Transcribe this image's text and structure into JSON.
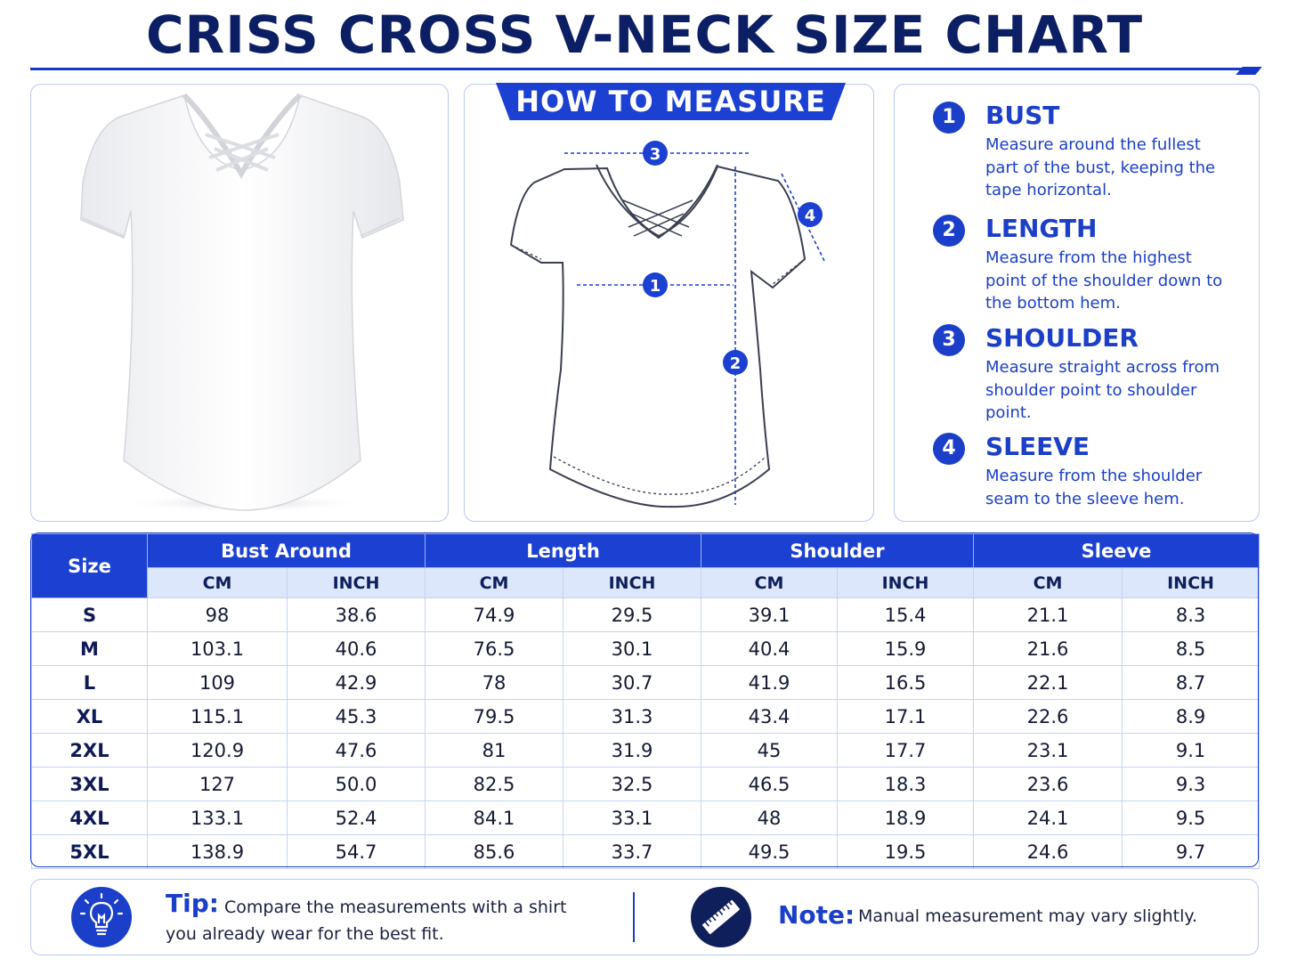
{
  "title": "CRISS CROSS V-NECK SIZE CHART",
  "how_to_measure": {
    "banner": "HOW TO MEASURE",
    "markers": [
      "1",
      "2",
      "3",
      "4"
    ]
  },
  "steps": [
    {
      "num": "1",
      "title": "BUST",
      "desc": "Measure around the fullest part of the bust, keeping the tape horizontal."
    },
    {
      "num": "2",
      "title": "LENGTH",
      "desc": "Measure from the highest point of the shoulder down to the bottom hem."
    },
    {
      "num": "3",
      "title": "SHOULDER",
      "desc": "Measure straight across from shoulder point to shoulder point."
    },
    {
      "num": "4",
      "title": "SLEEVE",
      "desc": "Measure from the shoulder seam to the sleeve hem."
    }
  ],
  "table": {
    "size_header": "Size",
    "groups": [
      "Bust Around",
      "Length",
      "Shoulder",
      "Sleeve"
    ],
    "units": [
      "CM",
      "INCH",
      "CM",
      "INCH",
      "CM",
      "INCH",
      "CM",
      "INCH"
    ],
    "rows": [
      {
        "size": "S",
        "values": [
          "98",
          "38.6",
          "74.9",
          "29.5",
          "39.1",
          "15.4",
          "21.1",
          "8.3"
        ]
      },
      {
        "size": "M",
        "values": [
          "103.1",
          "40.6",
          "76.5",
          "30.1",
          "40.4",
          "15.9",
          "21.6",
          "8.5"
        ]
      },
      {
        "size": "L",
        "values": [
          "109",
          "42.9",
          "78",
          "30.7",
          "41.9",
          "16.5",
          "22.1",
          "8.7"
        ]
      },
      {
        "size": "XL",
        "values": [
          "115.1",
          "45.3",
          "79.5",
          "31.3",
          "43.4",
          "17.1",
          "22.6",
          "8.9"
        ]
      },
      {
        "size": "2XL",
        "values": [
          "120.9",
          "47.6",
          "81",
          "31.9",
          "45",
          "17.7",
          "23.1",
          "9.1"
        ]
      },
      {
        "size": "3XL",
        "values": [
          "127",
          "50.0",
          "82.5",
          "32.5",
          "46.5",
          "18.3",
          "23.6",
          "9.3"
        ]
      },
      {
        "size": "4XL",
        "values": [
          "133.1",
          "52.4",
          "84.1",
          "33.1",
          "48",
          "18.9",
          "24.1",
          "9.5"
        ]
      },
      {
        "size": "5XL",
        "values": [
          "138.9",
          "54.7",
          "85.6",
          "33.7",
          "49.5",
          "19.5",
          "24.6",
          "9.7"
        ]
      }
    ]
  },
  "footer": {
    "tip_label": "Tip:",
    "tip_text": "Compare the measurements with a shirt you already wear for the best fit.",
    "note_label": "Note:",
    "note_text": "Manual measurement may vary slightly."
  },
  "icons": {
    "tip": "lightbulb-icon",
    "note": "ruler-icon"
  },
  "colors": {
    "primary": "#1b40d2",
    "title": "#0c1f64",
    "header_light": "#dde7fb",
    "border": "#b9c9f2"
  }
}
